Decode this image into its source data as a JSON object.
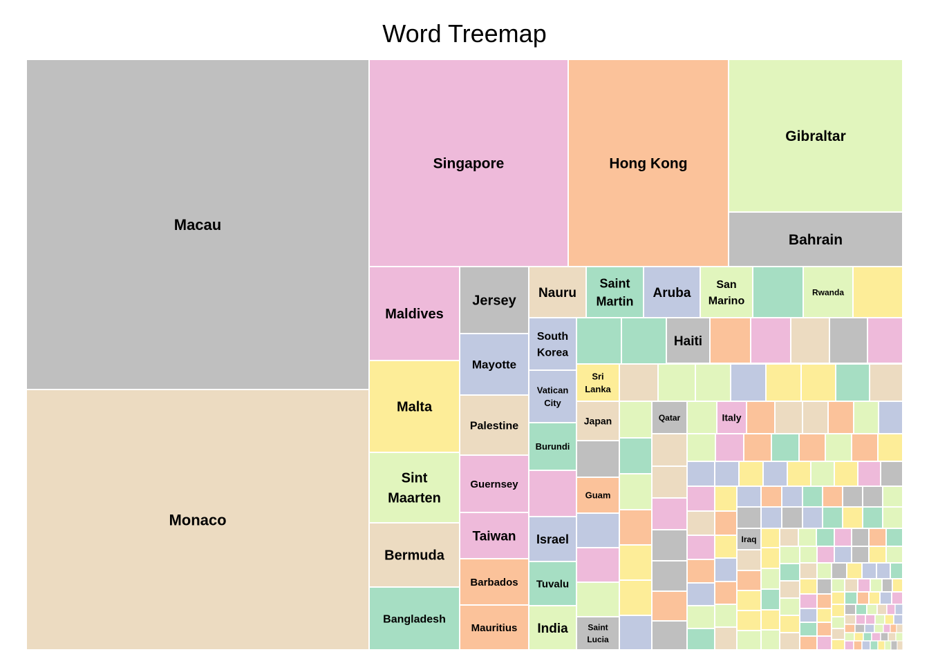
{
  "chart_data": {
    "type": "treemap",
    "title": "Word Treemap",
    "palette": {
      "grey": "#bfbfbf",
      "pink": "#eebada",
      "orange": "#fbc29a",
      "lime": "#e1f5bd",
      "tan": "#ecdbc1",
      "blue": "#c0c9e1",
      "green": "#a6dec3",
      "yellow": "#fded98"
    },
    "labeled_items": [
      {
        "label": "Macau",
        "color": "grey"
      },
      {
        "label": "Monaco",
        "color": "tan"
      },
      {
        "label": "Singapore",
        "color": "pink"
      },
      {
        "label": "Hong Kong",
        "color": "orange"
      },
      {
        "label": "Gibraltar",
        "color": "lime"
      },
      {
        "label": "Bahrain",
        "color": "grey"
      },
      {
        "label": "Maldives",
        "color": "pink"
      },
      {
        "label": "Malta",
        "color": "yellow"
      },
      {
        "label": "Sint Maarten",
        "color": "lime"
      },
      {
        "label": "Bermuda",
        "color": "tan"
      },
      {
        "label": "Bangladesh",
        "color": "green"
      },
      {
        "label": "Jersey",
        "color": "grey"
      },
      {
        "label": "Mayotte",
        "color": "blue"
      },
      {
        "label": "Palestine",
        "color": "tan"
      },
      {
        "label": "Guernsey",
        "color": "pink"
      },
      {
        "label": "Taiwan",
        "color": "pink"
      },
      {
        "label": "Barbados",
        "color": "orange"
      },
      {
        "label": "Mauritius",
        "color": "orange"
      },
      {
        "label": "Nauru",
        "color": "tan"
      },
      {
        "label": "South Korea",
        "color": "blue"
      },
      {
        "label": "Vatican City",
        "color": "blue"
      },
      {
        "label": "Burundi",
        "color": "green"
      },
      {
        "label": "Israel",
        "color": "blue"
      },
      {
        "label": "Tuvalu",
        "color": "green"
      },
      {
        "label": "India",
        "color": "lime"
      },
      {
        "label": "Saint Martin",
        "color": "green"
      },
      {
        "label": "Aruba",
        "color": "blue"
      },
      {
        "label": "San Marino",
        "color": "lime"
      },
      {
        "label": "Rwanda",
        "color": "lime"
      },
      {
        "label": "Haiti",
        "color": "grey"
      },
      {
        "label": "Sri Lanka",
        "color": "yellow"
      },
      {
        "label": "Japan",
        "color": "tan"
      },
      {
        "label": "Guam",
        "color": "orange"
      },
      {
        "label": "Saint Lucia",
        "color": "grey"
      },
      {
        "label": "Qatar",
        "color": "grey"
      },
      {
        "label": "Italy",
        "color": "pink"
      },
      {
        "label": "Iraq",
        "color": "grey"
      }
    ]
  }
}
